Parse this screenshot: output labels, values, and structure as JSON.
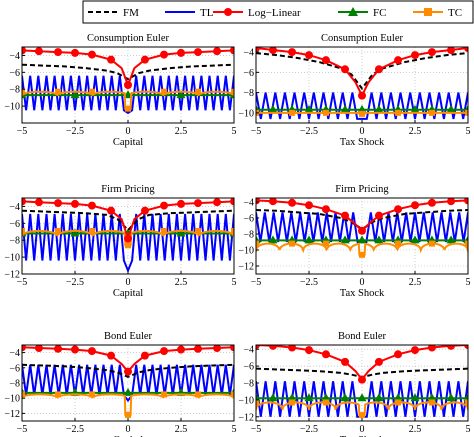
{
  "legend": [
    {
      "name": "FM",
      "color": "#000000",
      "style": "dashed",
      "marker": "none"
    },
    {
      "name": "TL",
      "color": "#0000ff",
      "style": "solid",
      "marker": "none"
    },
    {
      "name": "Log−Linear",
      "color": "#ff0000",
      "style": "solid",
      "marker": "circle"
    },
    {
      "name": "FC",
      "color": "#008000",
      "style": "solid",
      "marker": "triangle"
    },
    {
      "name": "TC",
      "color": "#ff8c00",
      "style": "solid",
      "marker": "square"
    }
  ],
  "chart_data": [
    {
      "type": "line",
      "title": "Consumption Euler",
      "xlabel": "Capital",
      "xlim": [
        -5,
        5
      ],
      "ylim": [
        -12,
        -3
      ],
      "xticks": [
        "−5",
        "−2.5",
        "0",
        "2.5",
        "5"
      ],
      "xtick_values": [
        -5,
        -2.5,
        0,
        2.5,
        5
      ],
      "yticks": [
        "−4",
        "−6",
        "−8",
        "−10"
      ],
      "ytick_values": [
        -4,
        -6,
        -8,
        -10
      ],
      "grid": true,
      "series": [
        {
          "name": "FM",
          "x": [
            -5,
            -4,
            -3,
            -2,
            -1,
            -0.5,
            0,
            0.5,
            1,
            2,
            3,
            4,
            5
          ],
          "y": [
            -5.1,
            -5.2,
            -5.3,
            -5.5,
            -5.8,
            -6.1,
            -6.8,
            -6.1,
            -5.8,
            -5.5,
            -5.3,
            -5.2,
            -5.1
          ]
        },
        {
          "name": "TL",
          "oscillation": {
            "cycles": 26,
            "upper": -6.4,
            "lower": -10.5,
            "center_dip": -10.8
          }
        },
        {
          "name": "Log−Linear",
          "x": [
            -5,
            -4.2,
            -3.3,
            -2.5,
            -1.7,
            -0.8,
            -0.3,
            0,
            0.3,
            0.8,
            1.7,
            2.5,
            3.3,
            4.2,
            5
          ],
          "y": [
            -3.4,
            -3.5,
            -3.6,
            -3.7,
            -3.9,
            -4.5,
            -5.5,
            -7.5,
            -5.5,
            -4.5,
            -3.9,
            -3.7,
            -3.6,
            -3.5,
            -3.4
          ]
        },
        {
          "name": "FC",
          "x": [
            -5,
            -2.5,
            0,
            2.5,
            5
          ],
          "y": [
            -8.7,
            -8.7,
            -8.7,
            -8.7,
            -8.7
          ]
        },
        {
          "name": "TC",
          "ripple": {
            "base": -8.3,
            "dip": -8.8,
            "arches": 6,
            "center": -10.3
          }
        }
      ]
    },
    {
      "type": "line",
      "title": "Consumption Euler",
      "xlabel": "Tax Shock",
      "xlim": [
        -5,
        5
      ],
      "ylim": [
        -11,
        -3.5
      ],
      "xticks": [
        "−5",
        "−2.5",
        "0",
        "2.5",
        "5"
      ],
      "xtick_values": [
        -5,
        -2.5,
        0,
        2.5,
        5
      ],
      "yticks": [
        "−4",
        "−6",
        "−8",
        "−10"
      ],
      "ytick_values": [
        -4,
        -6,
        -8,
        -10
      ],
      "grid": true,
      "series": [
        {
          "name": "FM",
          "x": [
            -5,
            -4,
            -3,
            -2,
            -1,
            -0.5,
            0,
            0.5,
            1,
            2,
            3,
            4,
            5
          ],
          "y": [
            -4.1,
            -4.3,
            -4.6,
            -5.0,
            -5.6,
            -6.2,
            -7.6,
            -6.2,
            -5.6,
            -5.0,
            -4.6,
            -4.3,
            -4.1
          ]
        },
        {
          "name": "TL",
          "oscillation": {
            "cycles": 22,
            "upper": -8.0,
            "lower": -10.6,
            "center_dip": -10.6
          }
        },
        {
          "name": "Log−Linear",
          "x": [
            -5,
            -4.2,
            -3.3,
            -2.5,
            -1.7,
            -0.8,
            -0.3,
            0,
            0.3,
            0.8,
            1.7,
            2.5,
            3.3,
            4.2,
            5
          ],
          "y": [
            -3.6,
            -3.8,
            -4.0,
            -4.3,
            -4.8,
            -5.7,
            -7.0,
            -8.3,
            -7.0,
            -5.7,
            -4.8,
            -4.3,
            -4.0,
            -3.8,
            -3.6
          ]
        },
        {
          "name": "FC",
          "x": [
            -5,
            -4.2,
            -3.3,
            -2.5,
            -1.7,
            -0.8,
            0,
            0.8,
            1.7,
            2.5,
            3.3,
            4.2,
            5
          ],
          "y": [
            -9.7,
            -9.7,
            -9.7,
            -9.7,
            -9.7,
            -9.7,
            -9.7,
            -9.7,
            -9.7,
            -9.7,
            -9.7,
            -9.7,
            -9.7
          ]
        },
        {
          "name": "TC",
          "ripple": {
            "base": -10.0,
            "dip": -10.2,
            "arches": 0,
            "center": -10.1
          }
        }
      ]
    },
    {
      "type": "line",
      "title": "Firm Pricing",
      "xlabel": "Capital",
      "xlim": [
        -5,
        5
      ],
      "ylim": [
        -12,
        -3
      ],
      "xticks": [
        "−5",
        "−2.5",
        "0",
        "2.5",
        "5"
      ],
      "xtick_values": [
        -5,
        -2.5,
        0,
        2.5,
        5
      ],
      "yticks": [
        "−4",
        "−6",
        "−8",
        "−10",
        "−12"
      ],
      "ytick_values": [
        -4,
        -6,
        -8,
        -10,
        -12
      ],
      "grid": true,
      "series": [
        {
          "name": "FM",
          "x": [
            -5,
            -4,
            -3,
            -2,
            -1,
            -0.5,
            0,
            0.5,
            1,
            2,
            3,
            4,
            5
          ],
          "y": [
            -4.5,
            -4.6,
            -4.7,
            -4.8,
            -5.0,
            -5.5,
            -6.8,
            -5.5,
            -5.0,
            -4.8,
            -4.7,
            -4.6,
            -4.5
          ]
        },
        {
          "name": "TL",
          "oscillation": {
            "cycles": 26,
            "upper": -4.9,
            "lower": -10.4,
            "center_dip": -11.6
          }
        },
        {
          "name": "Log−Linear",
          "x": [
            -5,
            -4.2,
            -3.3,
            -2.5,
            -1.7,
            -0.8,
            -0.3,
            0,
            0.3,
            0.8,
            1.7,
            2.5,
            3.3,
            4.2,
            5
          ],
          "y": [
            -3.4,
            -3.5,
            -3.6,
            -3.7,
            -3.9,
            -4.5,
            -5.5,
            -7.8,
            -5.5,
            -4.5,
            -3.9,
            -3.7,
            -3.6,
            -3.5,
            -3.4
          ]
        },
        {
          "name": "FC",
          "x": [
            -5,
            -2.5,
            0,
            2.5,
            5
          ],
          "y": [
            -7.2,
            -7.2,
            -7.2,
            -7.2,
            -7.2
          ]
        },
        {
          "name": "TC",
          "ripple": {
            "base": -6.9,
            "dip": -7.6,
            "arches": 6,
            "center": -8.6
          }
        }
      ]
    },
    {
      "type": "line",
      "title": "Firm Pricing",
      "xlabel": "Tax Shock",
      "xlim": [
        -5,
        5
      ],
      "ylim": [
        -13,
        -3.5
      ],
      "xticks": [
        "−5",
        "−2.5",
        "0",
        "2.5",
        "5"
      ],
      "xtick_values": [
        -5,
        -2.5,
        0,
        2.5,
        5
      ],
      "yticks": [
        "−4",
        "−6",
        "−8",
        "−10",
        "−12"
      ],
      "ytick_values": [
        -4,
        -6,
        -8,
        -10,
        -12
      ],
      "grid": true,
      "series": [
        {
          "name": "FM",
          "x": [
            -5,
            -4,
            -3,
            -2,
            -1,
            -0.5,
            0,
            0.5,
            1,
            2,
            3,
            4,
            5
          ],
          "y": [
            -5.0,
            -5.1,
            -5.3,
            -5.5,
            -6.0,
            -6.5,
            -7.4,
            -6.5,
            -6.0,
            -5.5,
            -5.3,
            -5.1,
            -5.0
          ]
        },
        {
          "name": "TL",
          "oscillation": {
            "cycles": 24,
            "upper": -5.3,
            "lower": -9.0,
            "center_dip": -9.0
          }
        },
        {
          "name": "Log−Linear",
          "x": [
            -5,
            -4.2,
            -3.3,
            -2.5,
            -1.7,
            -0.8,
            -0.3,
            0,
            0.3,
            0.8,
            1.7,
            2.5,
            3.3,
            4.2,
            5
          ],
          "y": [
            -3.8,
            -3.9,
            -4.1,
            -4.4,
            -4.9,
            -5.7,
            -6.8,
            -7.6,
            -6.8,
            -5.7,
            -4.9,
            -4.4,
            -4.1,
            -3.9,
            -3.8
          ]
        },
        {
          "name": "FC",
          "x": [
            -5,
            -4.2,
            -3.3,
            -2.5,
            -1.7,
            -0.8,
            0,
            0.8,
            1.7,
            2.5,
            3.3,
            4.2,
            5
          ],
          "y": [
            -8.8,
            -8.8,
            -8.8,
            -8.8,
            -8.8,
            -8.8,
            -8.8,
            -8.8,
            -8.8,
            -8.8,
            -8.8,
            -8.8,
            -8.8
          ]
        },
        {
          "name": "TC",
          "ripple": {
            "base": -9.2,
            "dip": -10.2,
            "arches": 9,
            "center": -10.6
          }
        }
      ]
    },
    {
      "type": "line",
      "title": "Bond Euler",
      "xlabel": "Capital",
      "xlim": [
        -5,
        5
      ],
      "ylim": [
        -13,
        -3
      ],
      "xticks": [
        "−5",
        "−2.5",
        "0",
        "2.5",
        "5"
      ],
      "xtick_values": [
        -5,
        -2.5,
        0,
        2.5,
        5
      ],
      "yticks": [
        "−4",
        "−6",
        "−8",
        "−10",
        "−12"
      ],
      "ytick_values": [
        -4,
        -6,
        -8,
        -10,
        -12
      ],
      "grid": true,
      "series": [
        {
          "name": "FM",
          "x": [
            -5,
            -4,
            -3,
            -2,
            -1,
            -0.5,
            0,
            0.5,
            1,
            2,
            3,
            4,
            5
          ],
          "y": [
            -5.6,
            -5.7,
            -5.8,
            -6.0,
            -6.3,
            -6.6,
            -7.2,
            -6.6,
            -6.3,
            -6.0,
            -5.8,
            -5.7,
            -5.6
          ]
        },
        {
          "name": "TL",
          "oscillation": {
            "cycles": 26,
            "upper": -5.6,
            "lower": -9.6,
            "center_dip": -10.3
          }
        },
        {
          "name": "Log−Linear",
          "x": [
            -5,
            -4.2,
            -3.3,
            -2.5,
            -1.7,
            -0.8,
            -0.3,
            0,
            0.3,
            0.8,
            1.7,
            2.5,
            3.3,
            4.2,
            5
          ],
          "y": [
            -3.3,
            -3.4,
            -3.5,
            -3.6,
            -3.8,
            -4.4,
            -5.5,
            -6.5,
            -5.5,
            -4.4,
            -3.8,
            -3.6,
            -3.5,
            -3.4,
            -3.3
          ]
        },
        {
          "name": "FC",
          "x": [
            -5,
            -2.5,
            0,
            2.5,
            5
          ],
          "y": [
            -9.3,
            -9.3,
            -9.3,
            -9.3,
            -9.3
          ]
        },
        {
          "name": "TC",
          "ripple": {
            "base": -9.5,
            "dip": -10.0,
            "arches": 6,
            "center": -12.2
          }
        }
      ]
    },
    {
      "type": "line",
      "title": "Bond Euler",
      "xlabel": "Tax Shock",
      "xlim": [
        -5,
        5
      ],
      "ylim": [
        -12.5,
        -3.5
      ],
      "xticks": [
        "−5",
        "−2.5",
        "0",
        "2.5",
        "5"
      ],
      "xtick_values": [
        -5,
        -2.5,
        0,
        2.5,
        5
      ],
      "yticks": [
        "−4",
        "−6",
        "−8",
        "−10",
        "−12"
      ],
      "ytick_values": [
        -4,
        -6,
        -8,
        -10,
        -12
      ],
      "grid": true,
      "series": [
        {
          "name": "FM",
          "x": [
            -5,
            -4,
            -3,
            -2,
            -1,
            -0.5,
            0,
            0.5,
            1,
            2,
            3,
            4,
            5
          ],
          "y": [
            -6.3,
            -6.4,
            -6.5,
            -6.6,
            -6.8,
            -7.0,
            -7.3,
            -7.0,
            -6.8,
            -6.6,
            -6.5,
            -6.4,
            -6.3
          ]
        },
        {
          "name": "TL",
          "oscillation": {
            "cycles": 22,
            "upper": -7.8,
            "lower": -12.0,
            "center_dip": -12.0
          }
        },
        {
          "name": "Log−Linear",
          "x": [
            -5,
            -4.2,
            -3.3,
            -2.5,
            -1.7,
            -0.8,
            -0.3,
            0,
            0.3,
            0.8,
            1.7,
            2.5,
            3.3,
            4.2,
            5
          ],
          "y": [
            -3.5,
            -3.6,
            -3.8,
            -4.1,
            -4.6,
            -5.5,
            -6.6,
            -7.6,
            -6.6,
            -5.5,
            -4.6,
            -4.1,
            -3.8,
            -3.6,
            -3.5
          ]
        },
        {
          "name": "FC",
          "x": [
            -5,
            -4.2,
            -3.3,
            -2.5,
            -1.7,
            -0.8,
            0,
            0.8,
            1.7,
            2.5,
            3.3,
            4.2,
            5
          ],
          "y": [
            -9.8,
            -9.8,
            -9.8,
            -9.8,
            -9.8,
            -9.8,
            -9.8,
            -9.8,
            -9.8,
            -9.8,
            -9.8,
            -9.8,
            -9.8
          ]
        },
        {
          "name": "TC",
          "ripple": {
            "base": -10.3,
            "dip": -11.2,
            "arches": 8,
            "center": -11.8
          }
        }
      ]
    }
  ]
}
